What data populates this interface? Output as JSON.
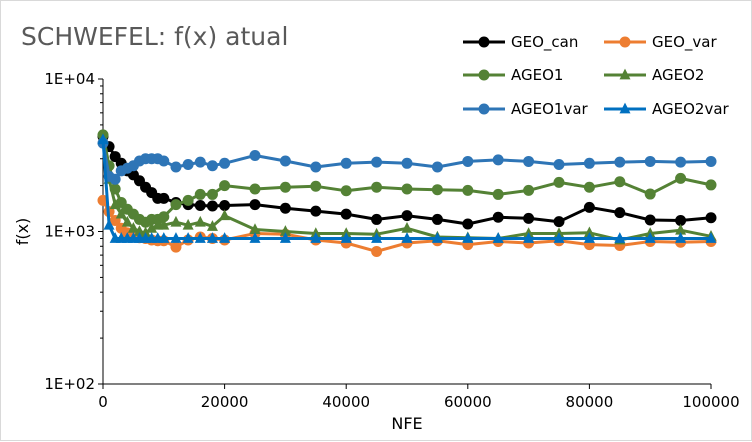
{
  "chart_data": {
    "type": "line",
    "title": "SCHWEFEL: f(x) atual",
    "xlabel": "NFE",
    "ylabel": "f(x)",
    "xlim": [
      0,
      100000
    ],
    "ylim": [
      100,
      10000
    ],
    "yscale": "log",
    "x_ticks": [
      0,
      20000,
      40000,
      60000,
      80000,
      100000
    ],
    "x_tick_labels": [
      "0",
      "20000",
      "40000",
      "60000",
      "80000",
      "100000"
    ],
    "y_ticks": [
      100,
      1000,
      10000
    ],
    "y_tick_labels": [
      "1E+02",
      "1E+03",
      "1E+04"
    ],
    "grid": false,
    "legend_position": "top-right",
    "series": [
      {
        "name": "GEO_can",
        "color": "#000000",
        "marker": "circle",
        "points": [
          [
            0,
            4200
          ],
          [
            1000,
            3600
          ],
          [
            2000,
            3100
          ],
          [
            3000,
            2800
          ],
          [
            4000,
            2500
          ],
          [
            5000,
            2350
          ],
          [
            6000,
            2150
          ],
          [
            7000,
            1950
          ],
          [
            8000,
            1800
          ],
          [
            9000,
            1650
          ],
          [
            10000,
            1650
          ],
          [
            12000,
            1550
          ],
          [
            14000,
            1500
          ],
          [
            16000,
            1480
          ],
          [
            18000,
            1470
          ],
          [
            20000,
            1480
          ],
          [
            25000,
            1500
          ],
          [
            30000,
            1420
          ],
          [
            35000,
            1360
          ],
          [
            40000,
            1300
          ],
          [
            45000,
            1200
          ],
          [
            50000,
            1270
          ],
          [
            55000,
            1200
          ],
          [
            60000,
            1120
          ],
          [
            65000,
            1240
          ],
          [
            70000,
            1220
          ],
          [
            75000,
            1160
          ],
          [
            80000,
            1440
          ],
          [
            85000,
            1330
          ],
          [
            90000,
            1190
          ],
          [
            95000,
            1180
          ],
          [
            100000,
            1230
          ]
        ]
      },
      {
        "name": "GEO_var",
        "color": "#ED7D31",
        "marker": "circle",
        "points": [
          [
            0,
            1600
          ],
          [
            1000,
            1350
          ],
          [
            2000,
            1180
          ],
          [
            3000,
            1050
          ],
          [
            4000,
            980
          ],
          [
            5000,
            940
          ],
          [
            6000,
            910
          ],
          [
            7000,
            900
          ],
          [
            8000,
            880
          ],
          [
            9000,
            870
          ],
          [
            10000,
            870
          ],
          [
            12000,
            790
          ],
          [
            14000,
            880
          ],
          [
            16000,
            920
          ],
          [
            18000,
            900
          ],
          [
            20000,
            880
          ],
          [
            25000,
            970
          ],
          [
            30000,
            960
          ],
          [
            35000,
            880
          ],
          [
            40000,
            840
          ],
          [
            45000,
            740
          ],
          [
            50000,
            840
          ],
          [
            55000,
            870
          ],
          [
            60000,
            820
          ],
          [
            65000,
            860
          ],
          [
            70000,
            840
          ],
          [
            75000,
            870
          ],
          [
            80000,
            820
          ],
          [
            85000,
            810
          ],
          [
            90000,
            860
          ],
          [
            95000,
            850
          ],
          [
            100000,
            860
          ]
        ]
      },
      {
        "name": "AGEO1",
        "color": "#548235",
        "marker": "circle",
        "points": [
          [
            0,
            4300
          ],
          [
            1000,
            2700
          ],
          [
            2000,
            1900
          ],
          [
            3000,
            1550
          ],
          [
            4000,
            1400
          ],
          [
            5000,
            1300
          ],
          [
            6000,
            1200
          ],
          [
            7000,
            1150
          ],
          [
            8000,
            1200
          ],
          [
            9000,
            1200
          ],
          [
            10000,
            1250
          ],
          [
            12000,
            1500
          ],
          [
            14000,
            1600
          ],
          [
            16000,
            1750
          ],
          [
            18000,
            1750
          ],
          [
            20000,
            2000
          ],
          [
            25000,
            1900
          ],
          [
            30000,
            1950
          ],
          [
            35000,
            1980
          ],
          [
            40000,
            1850
          ],
          [
            45000,
            1950
          ],
          [
            50000,
            1900
          ],
          [
            55000,
            1880
          ],
          [
            60000,
            1860
          ],
          [
            65000,
            1750
          ],
          [
            70000,
            1860
          ],
          [
            75000,
            2100
          ],
          [
            80000,
            1950
          ],
          [
            85000,
            2120
          ],
          [
            90000,
            1760
          ],
          [
            95000,
            2230
          ],
          [
            100000,
            2020
          ]
        ]
      },
      {
        "name": "AGEO2",
        "color": "#548235",
        "marker": "triangle",
        "points": [
          [
            0,
            4000
          ],
          [
            1000,
            2200
          ],
          [
            2000,
            1500
          ],
          [
            3000,
            1300
          ],
          [
            4000,
            1150
          ],
          [
            5000,
            1050
          ],
          [
            6000,
            1000
          ],
          [
            7000,
            980
          ],
          [
            8000,
            1050
          ],
          [
            9000,
            1100
          ],
          [
            10000,
            1100
          ],
          [
            12000,
            1150
          ],
          [
            14000,
            1100
          ],
          [
            16000,
            1150
          ],
          [
            18000,
            1080
          ],
          [
            20000,
            1270
          ],
          [
            25000,
            1030
          ],
          [
            30000,
            1000
          ],
          [
            35000,
            970
          ],
          [
            40000,
            970
          ],
          [
            45000,
            960
          ],
          [
            50000,
            1050
          ],
          [
            55000,
            920
          ],
          [
            60000,
            910
          ],
          [
            65000,
            900
          ],
          [
            70000,
            970
          ],
          [
            75000,
            970
          ],
          [
            80000,
            980
          ],
          [
            85000,
            880
          ],
          [
            90000,
            970
          ],
          [
            95000,
            1020
          ],
          [
            100000,
            930
          ]
        ]
      },
      {
        "name": "AGEO1var",
        "color": "#2E75B6",
        "marker": "circle",
        "points": [
          [
            0,
            3800
          ],
          [
            1000,
            2300
          ],
          [
            2000,
            2200
          ],
          [
            3000,
            2500
          ],
          [
            4000,
            2600
          ],
          [
            5000,
            2700
          ],
          [
            6000,
            2900
          ],
          [
            7000,
            3000
          ],
          [
            8000,
            3000
          ],
          [
            9000,
            3000
          ],
          [
            10000,
            2900
          ],
          [
            12000,
            2650
          ],
          [
            14000,
            2750
          ],
          [
            16000,
            2850
          ],
          [
            18000,
            2700
          ],
          [
            20000,
            2800
          ],
          [
            25000,
            3150
          ],
          [
            30000,
            2900
          ],
          [
            35000,
            2650
          ],
          [
            40000,
            2800
          ],
          [
            45000,
            2850
          ],
          [
            50000,
            2800
          ],
          [
            55000,
            2650
          ],
          [
            60000,
            2880
          ],
          [
            65000,
            2950
          ],
          [
            70000,
            2880
          ],
          [
            75000,
            2750
          ],
          [
            80000,
            2800
          ],
          [
            85000,
            2850
          ],
          [
            90000,
            2880
          ],
          [
            95000,
            2850
          ],
          [
            100000,
            2880
          ]
        ]
      },
      {
        "name": "AGEO2var",
        "color": "#0070C0",
        "marker": "triangle",
        "points": [
          [
            0,
            4000
          ],
          [
            1000,
            1100
          ],
          [
            2000,
            900
          ],
          [
            3000,
            900
          ],
          [
            4000,
            900
          ],
          [
            5000,
            900
          ],
          [
            6000,
            900
          ],
          [
            7000,
            900
          ],
          [
            8000,
            900
          ],
          [
            9000,
            900
          ],
          [
            10000,
            900
          ],
          [
            12000,
            900
          ],
          [
            14000,
            900
          ],
          [
            16000,
            900
          ],
          [
            18000,
            900
          ],
          [
            20000,
            900
          ],
          [
            25000,
            900
          ],
          [
            30000,
            900
          ],
          [
            35000,
            900
          ],
          [
            40000,
            900
          ],
          [
            45000,
            900
          ],
          [
            50000,
            900
          ],
          [
            55000,
            900
          ],
          [
            60000,
            900
          ],
          [
            65000,
            900
          ],
          [
            70000,
            900
          ],
          [
            75000,
            900
          ],
          [
            80000,
            900
          ],
          [
            85000,
            900
          ],
          [
            90000,
            900
          ],
          [
            95000,
            900
          ],
          [
            100000,
            900
          ]
        ]
      }
    ]
  }
}
